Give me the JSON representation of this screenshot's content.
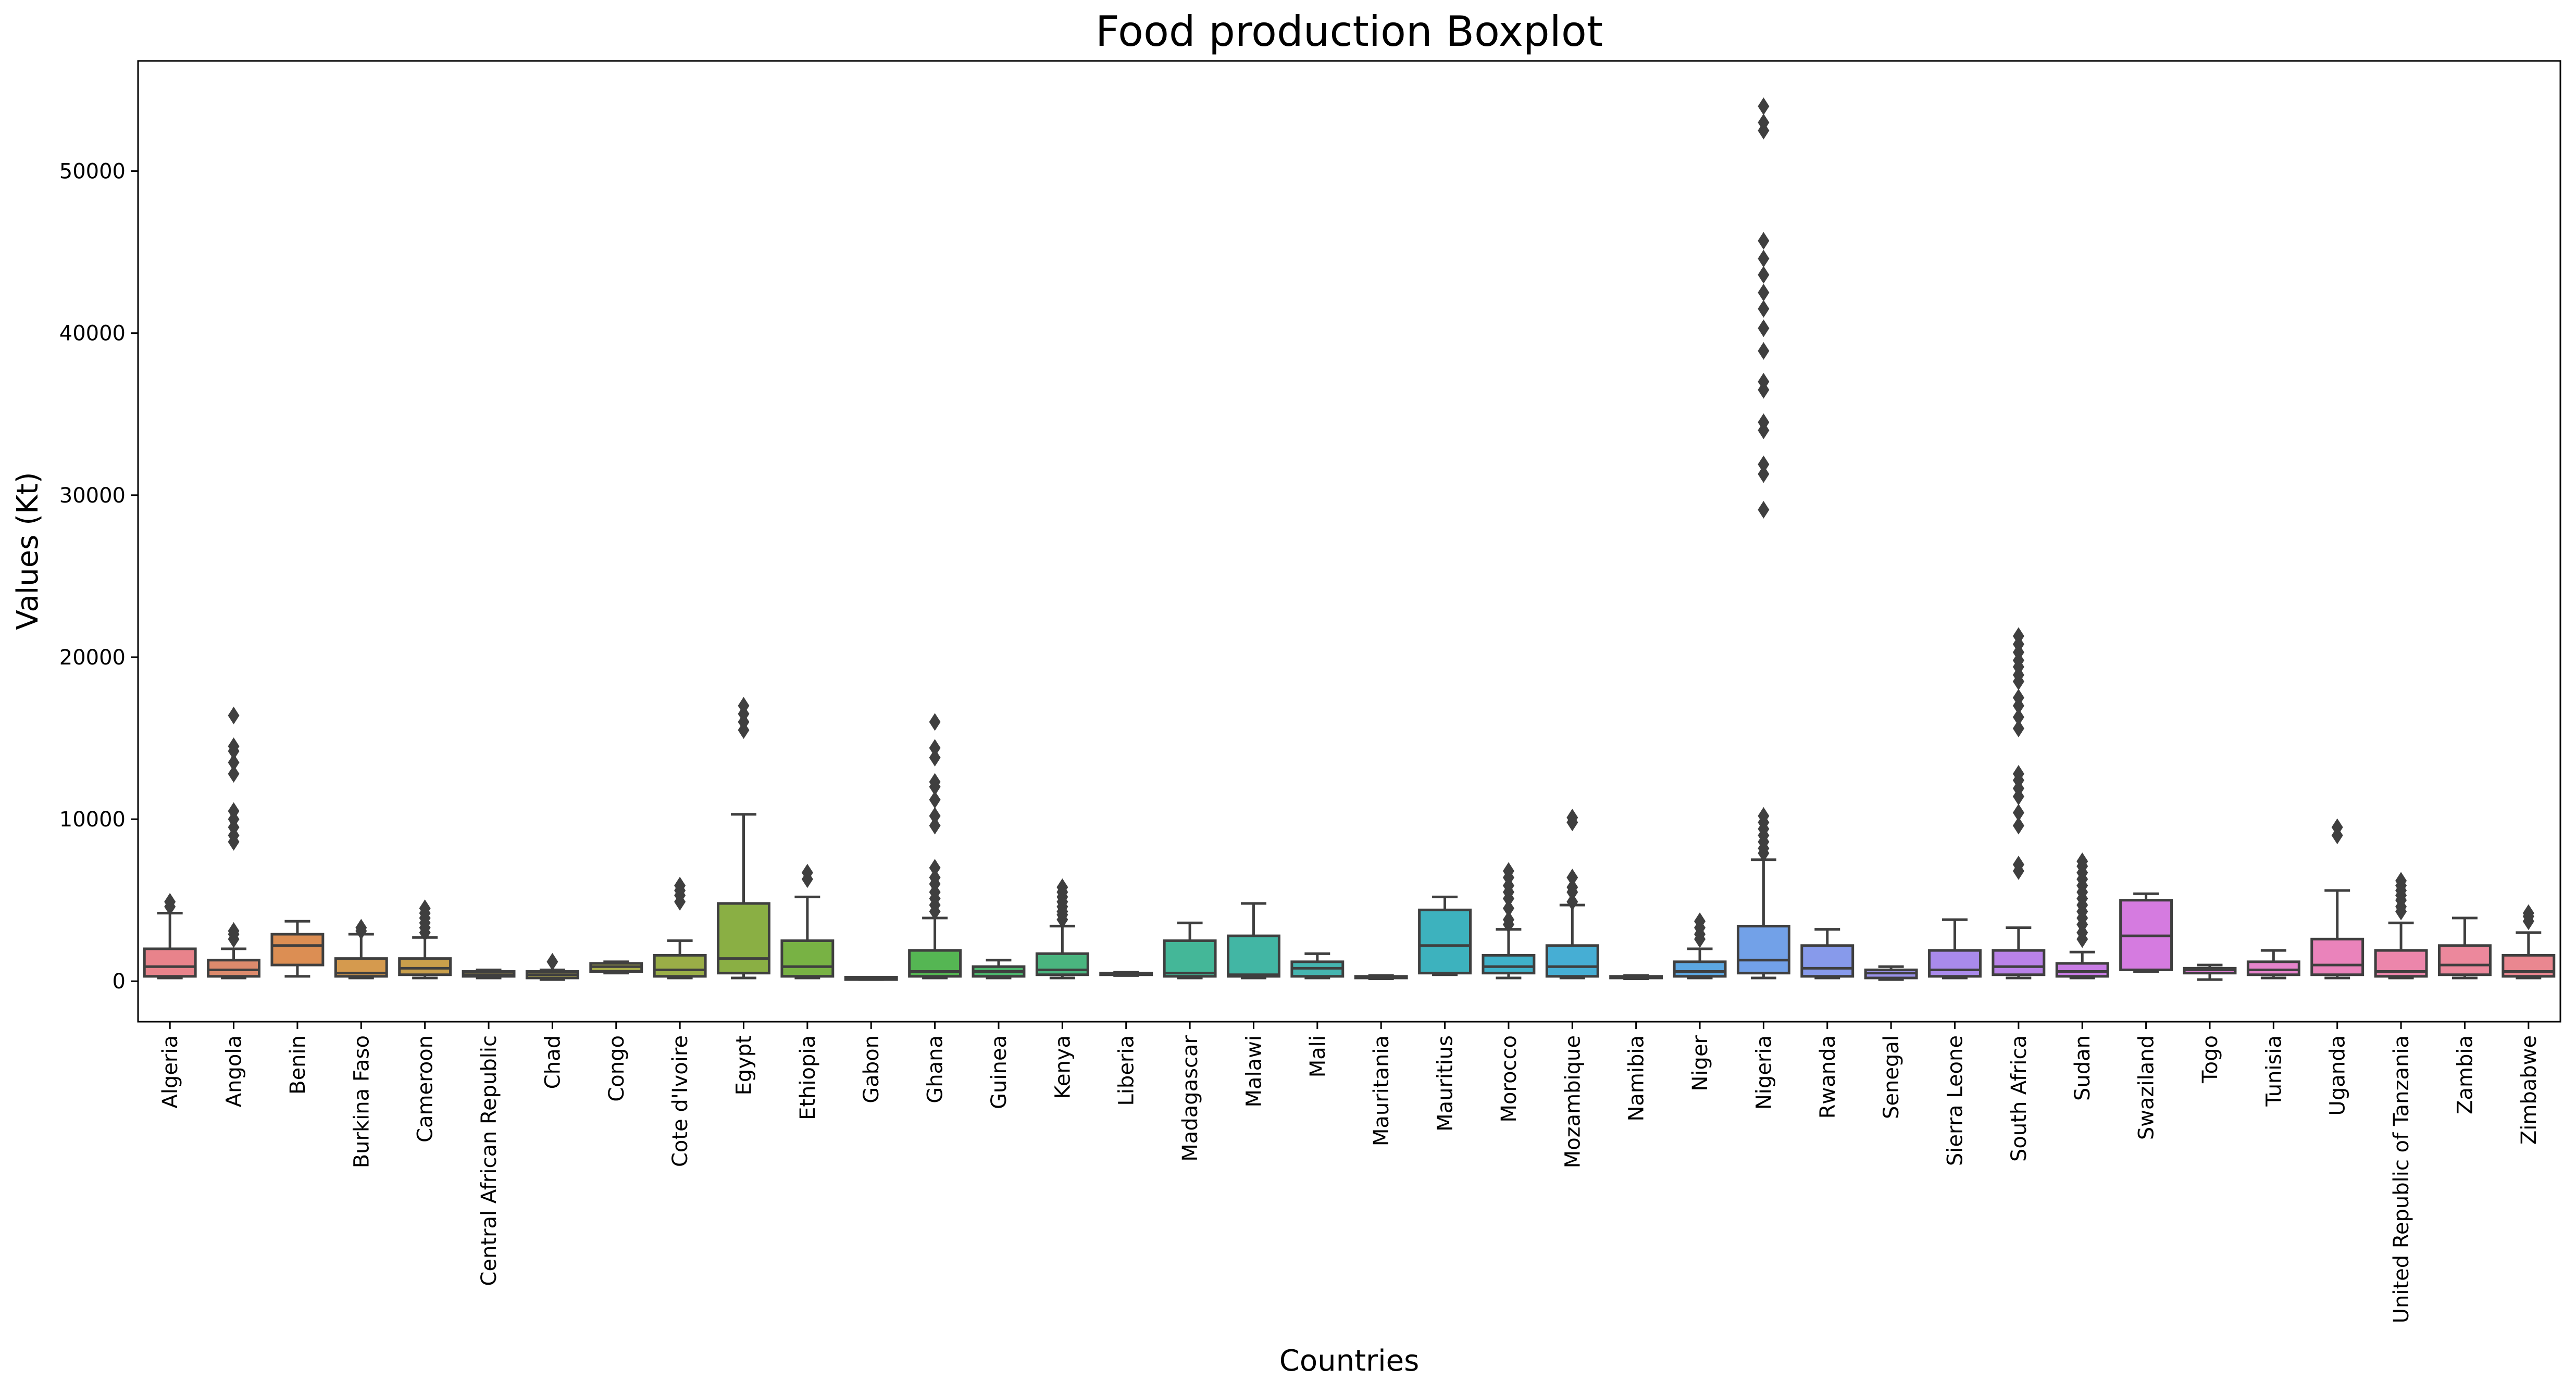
{
  "chart_data": {
    "type": "boxplot",
    "title": "Food production Boxplot",
    "xlabel": "Countries",
    "ylabel": "Values (Kt)",
    "ylim": [
      -2500,
      56800
    ],
    "yticks": [
      0,
      10000,
      20000,
      30000,
      40000,
      50000
    ],
    "grid": false,
    "categories": [
      "Algeria",
      "Angola",
      "Benin",
      "Burkina Faso",
      "Cameroon",
      "Central African Republic",
      "Chad",
      "Congo",
      "Cote d'Ivoire",
      "Egypt",
      "Ethiopia",
      "Gabon",
      "Ghana",
      "Guinea",
      "Kenya",
      "Liberia",
      "Madagascar",
      "Malawi",
      "Mali",
      "Mauritania",
      "Mauritius",
      "Morocco",
      "Mozambique",
      "Namibia",
      "Niger",
      "Nigeria",
      "Rwanda",
      "Senegal",
      "Sierra Leone",
      "South Africa",
      "Sudan",
      "Swaziland",
      "Togo",
      "Tunisia",
      "Uganda",
      "United Republic of Tanzania",
      "Zambia",
      "Zimbabwe"
    ],
    "colors": [
      "#e8838b",
      "#dd8a6c",
      "#dc8e53",
      "#d59a4e",
      "#c99f4b",
      "#bfa54b",
      "#b3a94d",
      "#a7ac49",
      "#9aae47",
      "#8aaf44",
      "#78b244",
      "#5fb54a",
      "#55b653",
      "#4db66d",
      "#4ab57f",
      "#46b68c",
      "#44b798",
      "#42b6a4",
      "#45b5b0",
      "#3ab4b6",
      "#3db2be",
      "#3fb1c9",
      "#46aed4",
      "#49aadb",
      "#5ca7e2",
      "#72a1e8",
      "#879aeb",
      "#9a92eb",
      "#a98aeb",
      "#b982e8",
      "#c87ce4",
      "#d57be0",
      "#e17fd7",
      "#e684cb",
      "#ea83bb",
      "#ec86ab",
      "#ec889c",
      "#ea8790"
    ],
    "series": [
      {
        "q1": 300,
        "median": 900,
        "q3": 2000,
        "whisker_low": 200,
        "whisker_high": 4200,
        "outliers": [
          4600,
          4900
        ]
      },
      {
        "q1": 300,
        "median": 700,
        "q3": 1300,
        "whisker_low": 200,
        "whisker_high": 2000,
        "outliers": [
          2600,
          2900,
          3100,
          8600,
          9000,
          9500,
          10000,
          10500,
          12800,
          13500,
          14200,
          14500,
          16400
        ]
      },
      {
        "q1": 1000,
        "median": 2200,
        "q3": 2900,
        "whisker_low": 300,
        "whisker_high": 3700,
        "outliers": []
      },
      {
        "q1": 300,
        "median": 500,
        "q3": 1400,
        "whisker_low": 200,
        "whisker_high": 2900,
        "outliers": [
          3100,
          3300
        ]
      },
      {
        "q1": 400,
        "median": 800,
        "q3": 1400,
        "whisker_low": 200,
        "whisker_high": 2700,
        "outliers": [
          3000,
          3300,
          3600,
          3900,
          4200,
          4500
        ]
      },
      {
        "q1": 300,
        "median": 400,
        "q3": 600,
        "whisker_low": 200,
        "whisker_high": 700,
        "outliers": []
      },
      {
        "q1": 200,
        "median": 400,
        "q3": 600,
        "whisker_low": 100,
        "whisker_high": 700,
        "outliers": [
          1200
        ]
      },
      {
        "q1": 600,
        "median": 900,
        "q3": 1100,
        "whisker_low": 500,
        "whisker_high": 1200,
        "outliers": []
      },
      {
        "q1": 300,
        "median": 700,
        "q3": 1600,
        "whisker_low": 200,
        "whisker_high": 2500,
        "outliers": [
          4900,
          5300,
          5600,
          5900
        ]
      },
      {
        "q1": 500,
        "median": 1400,
        "q3": 4800,
        "whisker_low": 200,
        "whisker_high": 10300,
        "outliers": [
          15500,
          16000,
          16500,
          17000
        ]
      },
      {
        "q1": 300,
        "median": 900,
        "q3": 2500,
        "whisker_low": 200,
        "whisker_high": 5200,
        "outliers": [
          6300,
          6700
        ]
      },
      {
        "q1": 100,
        "median": 150,
        "q3": 250,
        "whisker_low": 100,
        "whisker_high": 250,
        "outliers": []
      },
      {
        "q1": 300,
        "median": 600,
        "q3": 1900,
        "whisker_low": 200,
        "whisker_high": 3900,
        "outliers": [
          4300,
          4700,
          5100,
          5500,
          6000,
          6400,
          7000,
          9600,
          10200,
          11200,
          12000,
          12300,
          13800,
          14400,
          16000
        ]
      },
      {
        "q1": 300,
        "median": 600,
        "q3": 900,
        "whisker_low": 200,
        "whisker_high": 1300,
        "outliers": []
      },
      {
        "q1": 400,
        "median": 700,
        "q3": 1700,
        "whisker_low": 200,
        "whisker_high": 3400,
        "outliers": [
          3800,
          4100,
          4300,
          4600,
          4900,
          5200,
          5500,
          5800
        ]
      },
      {
        "q1": 400,
        "median": 450,
        "q3": 500,
        "whisker_low": 350,
        "whisker_high": 550,
        "outliers": []
      },
      {
        "q1": 300,
        "median": 500,
        "q3": 2500,
        "whisker_low": 200,
        "whisker_high": 3600,
        "outliers": []
      },
      {
        "q1": 300,
        "median": 400,
        "q3": 2800,
        "whisker_low": 200,
        "whisker_high": 4800,
        "outliers": []
      },
      {
        "q1": 300,
        "median": 800,
        "q3": 1200,
        "whisker_low": 200,
        "whisker_high": 1700,
        "outliers": []
      },
      {
        "q1": 200,
        "median": 250,
        "q3": 300,
        "whisker_low": 150,
        "whisker_high": 350,
        "outliers": []
      },
      {
        "q1": 500,
        "median": 2200,
        "q3": 4400,
        "whisker_low": 400,
        "whisker_high": 5200,
        "outliers": []
      },
      {
        "q1": 500,
        "median": 900,
        "q3": 1600,
        "whisker_low": 200,
        "whisker_high": 3200,
        "outliers": [
          3500,
          3800,
          4500,
          5100,
          5500,
          5900,
          6400,
          6800
        ]
      },
      {
        "q1": 300,
        "median": 900,
        "q3": 2200,
        "whisker_low": 200,
        "whisker_high": 4700,
        "outliers": [
          4900,
          5500,
          5800,
          6400,
          9800,
          10100
        ]
      },
      {
        "q1": 200,
        "median": 250,
        "q3": 300,
        "whisker_low": 150,
        "whisker_high": 350,
        "outliers": []
      },
      {
        "q1": 300,
        "median": 600,
        "q3": 1200,
        "whisker_low": 200,
        "whisker_high": 2000,
        "outliers": [
          2600,
          2900,
          3300,
          3700
        ]
      },
      {
        "q1": 500,
        "median": 1300,
        "q3": 3400,
        "whisker_low": 200,
        "whisker_high": 7500,
        "outliers": [
          7900,
          8200,
          8600,
          9000,
          9400,
          9800,
          10200,
          29100,
          31300,
          31900,
          34000,
          34500,
          36500,
          37000,
          38900,
          40300,
          41500,
          42500,
          43600,
          44600,
          45700,
          52500,
          53000,
          54000
        ]
      },
      {
        "q1": 300,
        "median": 800,
        "q3": 2200,
        "whisker_low": 200,
        "whisker_high": 3200,
        "outliers": []
      },
      {
        "q1": 200,
        "median": 500,
        "q3": 700,
        "whisker_low": 100,
        "whisker_high": 900,
        "outliers": []
      },
      {
        "q1": 300,
        "median": 700,
        "q3": 1900,
        "whisker_low": 200,
        "whisker_high": 3800,
        "outliers": []
      },
      {
        "q1": 400,
        "median": 900,
        "q3": 1900,
        "whisker_low": 200,
        "whisker_high": 3300,
        "outliers": [
          6800,
          7200,
          9600,
          10400,
          11400,
          11900,
          12400,
          12800,
          15600,
          16300,
          17000,
          17500,
          18500,
          18900,
          19400,
          19800,
          20300,
          20800,
          21300
        ]
      },
      {
        "q1": 300,
        "median": 600,
        "q3": 1100,
        "whisker_low": 200,
        "whisker_high": 1800,
        "outliers": [
          2600,
          3000,
          3500,
          3900,
          4300,
          4700,
          5100,
          5500,
          5900,
          6300,
          6700,
          7100,
          7400
        ]
      },
      {
        "q1": 700,
        "median": 2800,
        "q3": 5000,
        "whisker_low": 600,
        "whisker_high": 5400,
        "outliers": []
      },
      {
        "q1": 500,
        "median": 700,
        "q3": 800,
        "whisker_low": 100,
        "whisker_high": 1000,
        "outliers": []
      },
      {
        "q1": 400,
        "median": 700,
        "q3": 1200,
        "whisker_low": 200,
        "whisker_high": 1900,
        "outliers": []
      },
      {
        "q1": 400,
        "median": 1000,
        "q3": 2600,
        "whisker_low": 200,
        "whisker_high": 5600,
        "outliers": [
          9000,
          9500
        ]
      },
      {
        "q1": 300,
        "median": 600,
        "q3": 1900,
        "whisker_low": 200,
        "whisker_high": 3600,
        "outliers": [
          4300,
          4600,
          5000,
          5300,
          5600,
          5900,
          6200
        ]
      },
      {
        "q1": 400,
        "median": 1000,
        "q3": 2200,
        "whisker_low": 200,
        "whisker_high": 3900,
        "outliers": []
      },
      {
        "q1": 300,
        "median": 600,
        "q3": 1600,
        "whisker_low": 200,
        "whisker_high": 3000,
        "outliers": [
          3700,
          4000,
          4200
        ]
      }
    ]
  }
}
